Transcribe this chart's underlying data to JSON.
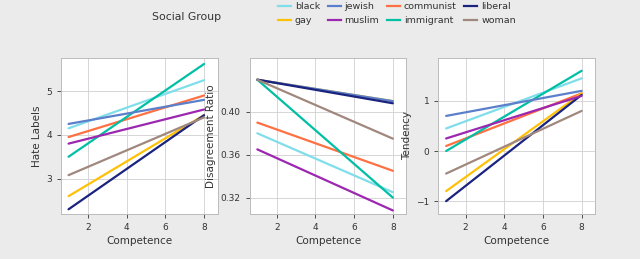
{
  "social_groups": [
    "black",
    "communist",
    "gay",
    "immigrant",
    "jewish",
    "liberal",
    "muslim",
    "woman"
  ],
  "colors": {
    "black": "#80DEEA",
    "communist": "#FF7043",
    "gay": "#FFC107",
    "immigrant": "#00BFA5",
    "jewish": "#5C7FCC",
    "liberal": "#1A237E",
    "muslim": "#9C27B0",
    "woman": "#A1887F"
  },
  "x_range": [
    1,
    8
  ],
  "plot1": {
    "ylabel": "Hate Labels",
    "xlabel": "Competence",
    "ylim": [
      2.2,
      5.75
    ],
    "yticks": [
      3,
      4,
      5
    ],
    "lines": {
      "black": [
        4.15,
        5.25
      ],
      "communist": [
        3.95,
        4.9
      ],
      "gay": [
        2.6,
        4.45
      ],
      "immigrant": [
        3.5,
        5.62
      ],
      "jewish": [
        4.25,
        4.8
      ],
      "liberal": [
        2.3,
        4.45
      ],
      "muslim": [
        3.8,
        4.58
      ],
      "woman": [
        3.08,
        4.4
      ]
    }
  },
  "plot2": {
    "ylabel": "Disagreement Ratio",
    "xlabel": "Competence",
    "ylim": [
      0.305,
      0.45
    ],
    "yticks": [
      0.32,
      0.36,
      0.4
    ],
    "lines": {
      "black": [
        0.38,
        0.325
      ],
      "communist": [
        0.39,
        0.345
      ],
      "gay": [
        0.43,
        0.41
      ],
      "immigrant": [
        0.43,
        0.32
      ],
      "jewish": [
        0.43,
        0.41
      ],
      "liberal": [
        0.43,
        0.408
      ],
      "muslim": [
        0.365,
        0.308
      ],
      "woman": [
        0.43,
        0.375
      ]
    }
  },
  "plot3": {
    "ylabel": "Tendency",
    "xlabel": "Competence",
    "ylim": [
      -1.25,
      1.85
    ],
    "yticks": [
      -1,
      0,
      1
    ],
    "lines": {
      "black": [
        0.45,
        1.45
      ],
      "communist": [
        0.1,
        1.15
      ],
      "gay": [
        -0.8,
        1.15
      ],
      "immigrant": [
        0.0,
        1.6
      ],
      "jewish": [
        0.7,
        1.2
      ],
      "liberal": [
        -1.0,
        1.12
      ],
      "muslim": [
        0.25,
        1.1
      ],
      "woman": [
        -0.45,
        0.8
      ]
    }
  },
  "legend_title": "Social Group",
  "legend_row1": [
    "black",
    "gay",
    "jewish",
    "muslim"
  ],
  "legend_row2": [
    "communist",
    "immigrant",
    "liberal",
    "woman"
  ],
  "background_color": "#ebebeb",
  "panel_color": "#ffffff",
  "grid_color": "#d0d0d0"
}
